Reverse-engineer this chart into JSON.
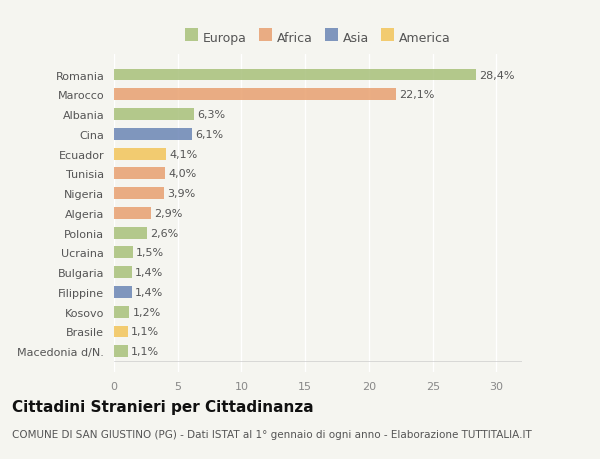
{
  "categories": [
    "Macedonia d/N.",
    "Brasile",
    "Kosovo",
    "Filippine",
    "Bulgaria",
    "Ucraina",
    "Polonia",
    "Algeria",
    "Nigeria",
    "Tunisia",
    "Ecuador",
    "Cina",
    "Albania",
    "Marocco",
    "Romania"
  ],
  "values": [
    1.1,
    1.1,
    1.2,
    1.4,
    1.4,
    1.5,
    2.6,
    2.9,
    3.9,
    4.0,
    4.1,
    6.1,
    6.3,
    22.1,
    28.4
  ],
  "labels": [
    "1,1%",
    "1,1%",
    "1,2%",
    "1,4%",
    "1,4%",
    "1,5%",
    "2,6%",
    "2,9%",
    "3,9%",
    "4,0%",
    "4,1%",
    "6,1%",
    "6,3%",
    "22,1%",
    "28,4%"
  ],
  "colors": [
    "#a8c07a",
    "#f2c45a",
    "#a8c07a",
    "#6b85b5",
    "#a8c07a",
    "#a8c07a",
    "#a8c07a",
    "#e8a070",
    "#e8a070",
    "#e8a070",
    "#f2c45a",
    "#6b85b5",
    "#a8c07a",
    "#e8a070",
    "#a8c07a"
  ],
  "legend_labels": [
    "Europa",
    "Africa",
    "Asia",
    "America"
  ],
  "legend_colors": [
    "#a8c07a",
    "#e8a070",
    "#6b85b5",
    "#f2c45a"
  ],
  "title": "Cittadini Stranieri per Cittadinanza",
  "subtitle": "COMUNE DI SAN GIUSTINO (PG) - Dati ISTAT al 1° gennaio di ogni anno - Elaborazione TUTTITALIA.IT",
  "xlim": [
    0,
    32
  ],
  "xticks": [
    0,
    5,
    10,
    15,
    20,
    25,
    30
  ],
  "background_color": "#f5f5f0",
  "plot_bg_color": "#f0f0eb",
  "bar_height": 0.6,
  "title_fontsize": 11,
  "subtitle_fontsize": 7.5,
  "label_fontsize": 8,
  "tick_fontsize": 8,
  "legend_fontsize": 9
}
